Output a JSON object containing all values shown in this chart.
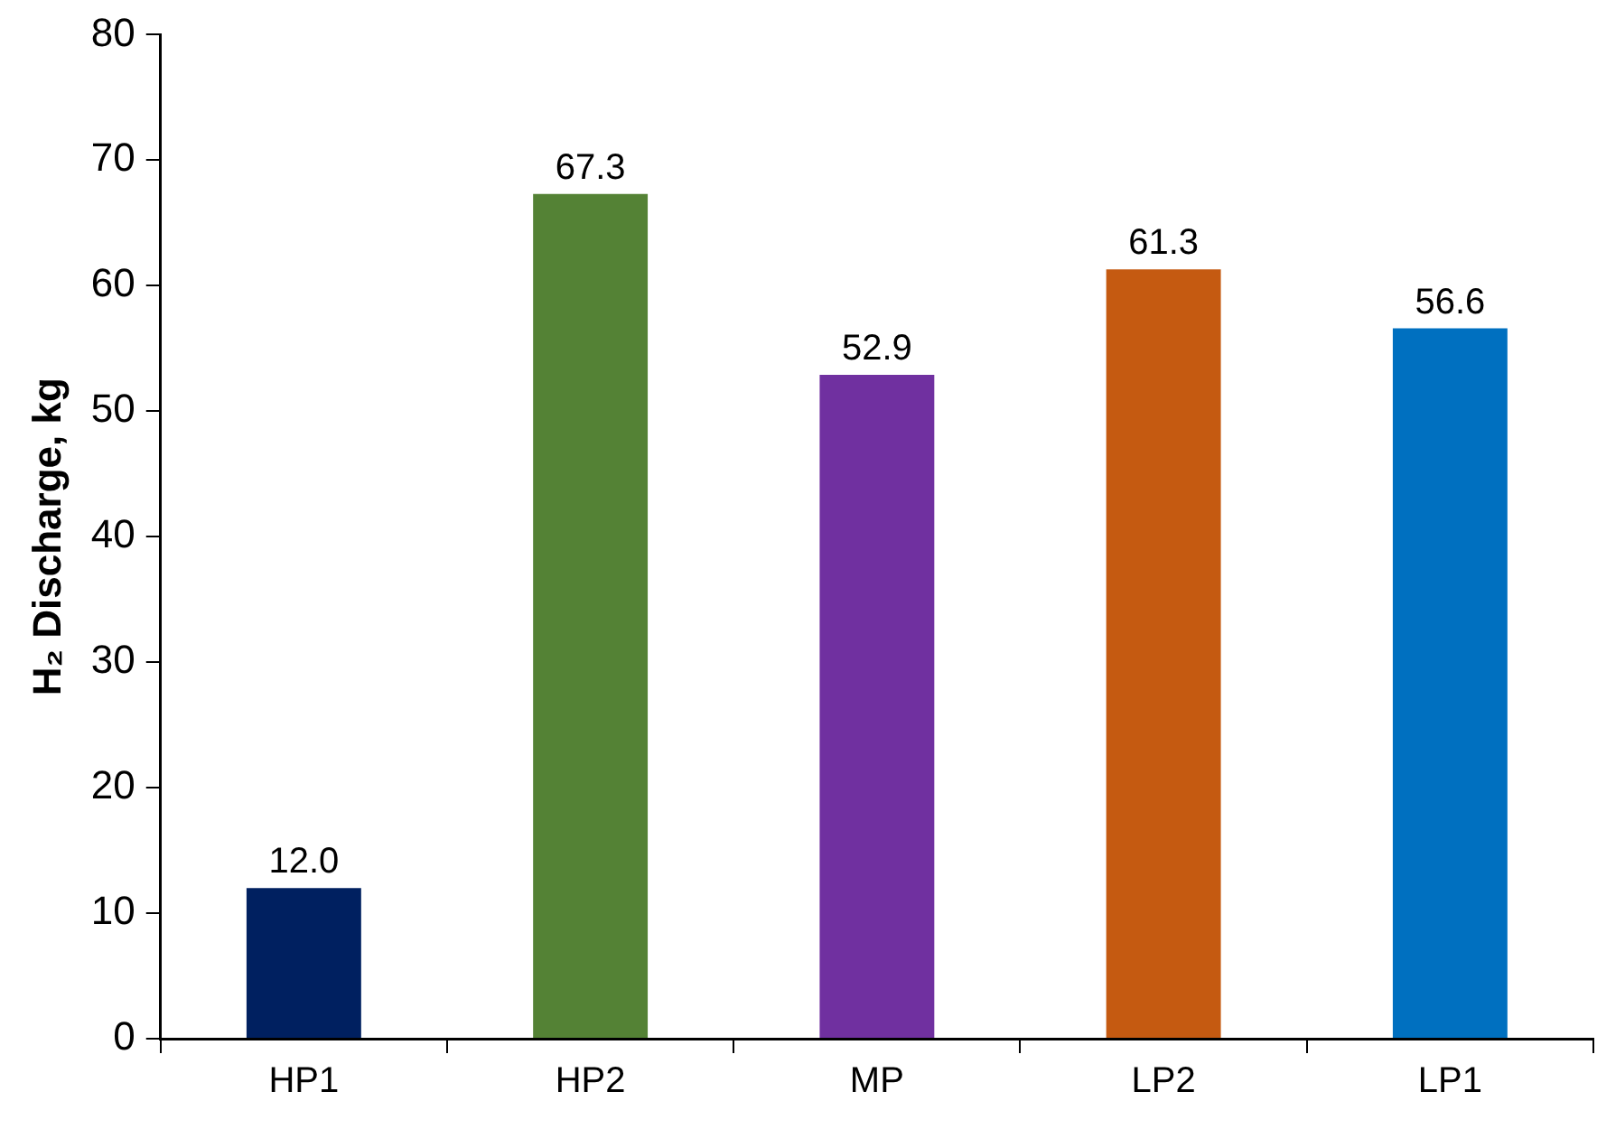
{
  "chart_data": {
    "type": "bar",
    "ylabel": "H₂ Discharge, kg",
    "categories": [
      "HP1",
      "HP2",
      "MP",
      "LP2",
      "LP1"
    ],
    "values": [
      12.0,
      67.3,
      52.9,
      61.3,
      56.6
    ],
    "colors": [
      "#002060",
      "#548235",
      "#7030a0",
      "#c55a11",
      "#0070c0"
    ],
    "ylim": [
      0,
      80
    ],
    "yticks": [
      0,
      10,
      20,
      30,
      40,
      50,
      60,
      70,
      80
    ],
    "value_labels": [
      "12.0",
      "67.3",
      "52.9",
      "61.3",
      "56.6"
    ],
    "grid": false,
    "legend": false
  }
}
